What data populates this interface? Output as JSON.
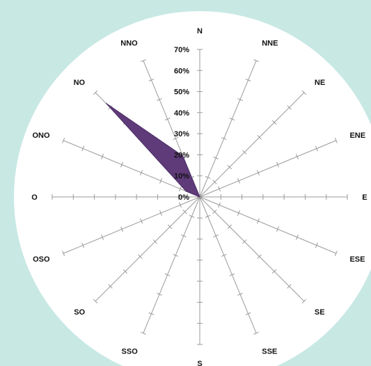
{
  "chart_data": {
    "type": "radar",
    "title": "",
    "directions": [
      "N",
      "NNE",
      "NE",
      "ENE",
      "E",
      "ESE",
      "SE",
      "SSE",
      "S",
      "SSO",
      "SO",
      "OSO",
      "O",
      "ONO",
      "NO",
      "NNO"
    ],
    "series": [
      {
        "values": [
          0,
          0,
          0,
          0,
          0,
          0,
          0,
          0,
          0,
          0,
          0,
          0,
          0,
          7,
          63,
          21
        ]
      }
    ],
    "rlim": [
      0,
      70
    ],
    "r_tick_step": 10,
    "r_tick_labels": [
      "0%",
      "10%",
      "20%",
      "30%",
      "40%",
      "50%",
      "60%",
      "70%"
    ],
    "fill_color": "#5f3b7a",
    "stroke_color": "#4a2c63",
    "background_color": "#c8e8e4",
    "plot_background_color": "#ffffff",
    "grid": true,
    "legend": "none"
  }
}
